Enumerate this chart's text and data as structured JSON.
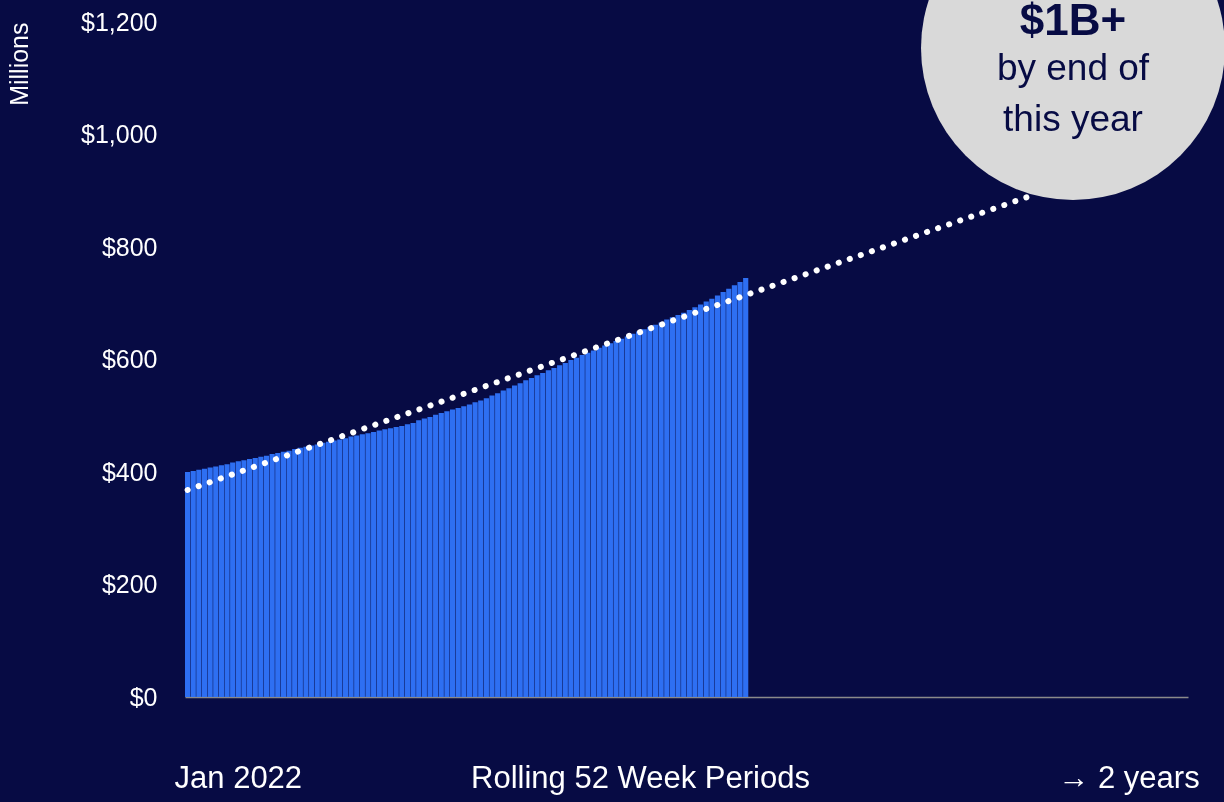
{
  "chart_data": {
    "type": "bar",
    "xlabel": "Rolling 52 Week Periods",
    "ylabel": "Millions",
    "grid": false,
    "ylim": [
      0,
      1200
    ],
    "yticks": [
      {
        "value": 0,
        "label": "$0"
      },
      {
        "value": 200,
        "label": "$200"
      },
      {
        "value": 400,
        "label": "$400"
      },
      {
        "value": 600,
        "label": "$600"
      },
      {
        "value": 800,
        "label": "$800"
      },
      {
        "value": 1000,
        "label": "$1,000"
      },
      {
        "value": 1200,
        "label": "$1,200"
      }
    ],
    "categories": [
      null,
      null,
      null,
      null,
      null,
      null,
      null,
      null,
      null,
      "Jan 2022",
      null,
      null,
      null,
      null,
      null,
      null,
      null,
      null,
      null,
      null,
      null,
      null,
      null,
      null,
      null,
      null,
      null,
      null,
      null,
      null,
      null,
      null,
      null,
      null,
      null,
      null,
      null,
      null,
      null,
      null,
      null,
      null,
      null,
      null,
      null,
      null,
      null,
      null,
      null,
      null,
      null,
      null,
      null,
      null,
      null,
      null,
      null,
      null,
      null,
      null,
      null,
      null,
      null,
      null,
      null,
      null,
      null,
      null,
      null,
      null,
      null,
      null,
      null,
      null,
      null,
      null,
      null,
      null,
      null,
      null,
      null,
      null,
      null,
      null,
      null,
      null,
      null,
      null,
      null,
      null,
      null,
      null,
      null,
      null,
      null,
      null,
      null,
      null,
      null,
      null,
      null,
      null,
      null,
      null,
      null,
      null,
      null,
      null,
      null,
      null,
      null,
      null,
      null,
      null,
      null,
      null,
      null,
      null,
      null,
      null,
      null,
      null,
      null,
      null,
      null,
      null,
      null,
      null,
      null,
      null,
      null,
      null,
      null,
      null,
      null,
      null,
      null,
      null,
      null,
      null,
      null,
      null,
      null,
      null,
      null,
      null,
      null,
      null,
      null,
      null,
      null,
      null,
      null,
      null,
      null,
      null,
      null,
      null,
      null,
      null,
      null,
      null,
      null,
      null,
      null,
      null,
      null,
      "→ 2 years",
      null,
      null,
      null,
      null,
      null,
      null,
      null,
      null,
      null,
      null
    ],
    "series": [
      {
        "color": "#2e6ff2",
        "values": [
          400,
          402,
          404,
          406,
          408,
          410,
          412,
          414,
          417,
          419,
          421,
          423,
          425,
          427,
          429,
          432,
          434,
          436,
          438,
          441,
          443,
          445,
          447,
          449,
          452,
          454,
          456,
          458,
          460,
          463,
          465,
          467,
          469,
          471,
          474,
          476,
          478,
          480,
          482,
          485,
          487,
          492,
          495,
          498,
          502,
          505,
          508,
          511,
          514,
          517,
          520,
          524,
          527,
          531,
          536,
          540,
          545,
          549,
          554,
          558,
          563,
          567,
          572,
          576,
          581,
          585,
          590,
          594,
          599,
          603,
          608,
          612,
          616,
          621,
          625,
          629,
          633,
          637,
          641,
          646,
          650,
          654,
          658,
          662,
          666,
          671,
          675,
          679,
          683,
          688,
          693,
          698,
          703,
          708,
          714,
          720,
          726,
          732,
          738,
          745,
          null,
          null,
          null,
          null,
          null,
          null,
          null,
          null,
          null,
          null,
          null,
          null,
          null,
          null,
          null,
          null,
          null,
          null,
          null,
          null,
          null,
          null,
          null,
          null,
          null,
          null,
          null,
          null,
          null,
          null,
          null,
          null,
          null,
          null,
          null,
          null,
          null,
          null,
          null,
          null,
          null,
          null,
          null,
          null,
          null,
          null,
          null,
          null,
          null,
          null,
          null,
          null,
          null,
          null,
          null,
          null,
          null,
          null,
          null,
          null,
          null,
          null,
          null,
          null,
          null,
          null,
          null,
          null,
          null,
          null,
          null,
          null,
          null,
          null,
          null,
          null,
          null,
          null
        ]
      },
      {
        "type": "line",
        "color": "#ffffff",
        "line_style": "dotted",
        "marker": "none",
        "values": [
          368,
          371,
          375,
          378,
          382,
          385,
          389,
          392,
          396,
          399,
          403,
          406,
          410,
          413,
          417,
          420,
          424,
          427,
          431,
          434,
          438,
          441,
          445,
          448,
          452,
          455,
          459,
          462,
          466,
          469,
          473,
          476,
          480,
          483,
          487,
          490,
          494,
          497,
          501,
          504,
          508,
          511,
          515,
          518,
          522,
          525,
          529,
          532,
          536,
          539,
          543,
          546,
          550,
          553,
          557,
          560,
          564,
          567,
          571,
          574,
          578,
          581,
          585,
          588,
          592,
          595,
          599,
          602,
          606,
          609,
          613,
          616,
          620,
          623,
          627,
          630,
          634,
          637,
          641,
          644,
          648,
          651,
          655,
          658,
          662,
          665,
          669,
          672,
          676,
          679,
          683,
          686,
          690,
          693,
          697,
          700,
          704,
          707,
          711,
          714,
          718,
          721,
          725,
          728,
          732,
          735,
          739,
          742,
          746,
          749,
          753,
          756,
          760,
          763,
          767,
          770,
          774,
          777,
          781,
          784,
          788,
          791,
          795,
          798,
          802,
          805,
          809,
          812,
          816,
          819,
          823,
          826,
          830,
          833,
          837,
          840,
          844,
          847,
          851,
          854,
          858,
          861,
          865,
          868,
          872,
          875,
          879,
          882,
          886,
          889,
          null,
          null,
          null,
          null,
          null,
          null,
          null,
          null,
          null,
          null,
          null,
          null,
          null,
          null,
          null,
          null,
          null,
          null,
          null,
          null,
          null,
          null,
          null,
          null,
          null,
          null,
          null,
          null
        ]
      }
    ],
    "annotations": [
      "$1B+",
      "by end of",
      "this year"
    ]
  }
}
